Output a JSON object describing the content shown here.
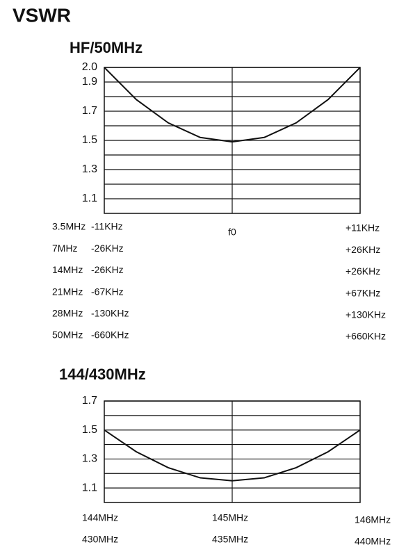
{
  "title": "VSWR",
  "chart_data": [
    {
      "type": "line",
      "title": "HF/50MHz",
      "ylim": [
        1.0,
        2.0
      ],
      "yticks": [
        1.1,
        1.3,
        1.5,
        1.7,
        1.9,
        {
          "value": 2,
          "label": "2.0"
        }
      ],
      "minor_yticks": [
        1.2,
        1.4,
        1.6,
        1.8
      ],
      "grid": true,
      "categories": [
        null,
        null,
        null,
        null,
        "f0",
        null,
        null,
        null,
        null
      ],
      "series": [
        {
          "color": "#111111",
          "values": [
            2.0,
            1.78,
            1.62,
            1.52,
            1.49,
            1.52,
            1.62,
            1.78,
            2.0
          ]
        }
      ],
      "band_rows": [
        {
          "band": "3.5MHz",
          "low": "-11KHz",
          "high": "+11KHz"
        },
        {
          "band": "7MHz",
          "low": "-26KHz",
          "high": "+26KHz"
        },
        {
          "band": "14MHz",
          "low": "-26KHz",
          "high": "+26KHz"
        },
        {
          "band": "21MHz",
          "low": "-67KHz",
          "high": "+67KHz"
        },
        {
          "band": "28MHz",
          "low": "-130KHz",
          "high": "+130KHz"
        },
        {
          "band": "50MHz",
          "low": "-660KHz",
          "high": "+660KHz"
        }
      ]
    },
    {
      "type": "line",
      "title": "144/430MHz",
      "ylim": [
        1.0,
        1.7
      ],
      "yticks": [
        1.1,
        1.3,
        1.5,
        1.7
      ],
      "minor_yticks": [
        1.2,
        1.4,
        1.6
      ],
      "grid": true,
      "categories": [
        null,
        null,
        null,
        null,
        null,
        null,
        null,
        null,
        null
      ],
      "series": [
        {
          "color": "#111111",
          "values": [
            1.5,
            1.35,
            1.24,
            1.17,
            1.15,
            1.17,
            1.24,
            1.35,
            1.5
          ]
        }
      ],
      "x_label_rows": [
        [
          "144MHz",
          "145MHz",
          "146MHz"
        ],
        [
          "430MHz",
          "435MHz",
          "440MHz"
        ]
      ]
    }
  ]
}
